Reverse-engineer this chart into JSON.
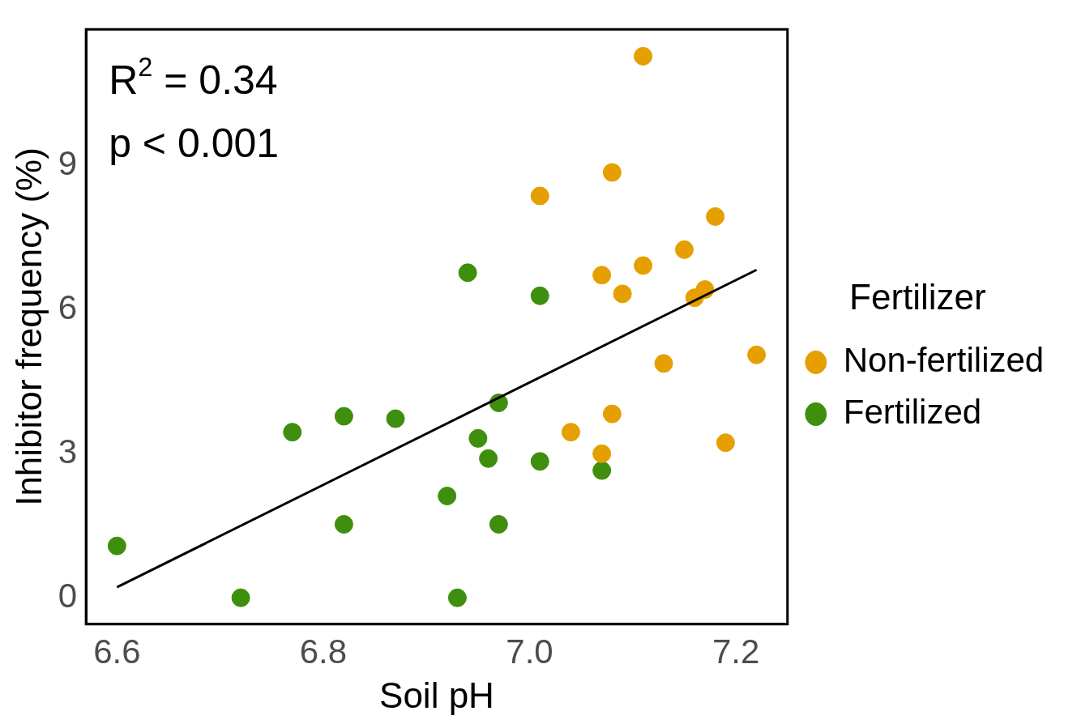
{
  "chart_data": {
    "type": "scatter",
    "xlabel": "Soil pH",
    "ylabel": "Inhibitor frequency (%)",
    "legend_title": "Fertilizer",
    "legend": "right",
    "grid": false,
    "xlim": [
      6.57,
      7.25
    ],
    "ylim": [
      -0.55,
      11.84
    ],
    "xticks": [
      6.6,
      6.8,
      {
        "value": 7.0,
        "label": "7.0"
      },
      7.2
    ],
    "yticks": [
      0,
      3,
      6,
      9
    ],
    "annotations": [
      "R$^{2}$ = 0.34",
      "p < 0.001"
    ],
    "series": [
      {
        "name": "Non-fertilized",
        "color": "#e69f00",
        "marker": "circle",
        "x": [
          7.11,
          7.08,
          7.01,
          7.18,
          7.15,
          7.07,
          7.11,
          7.09,
          7.17,
          7.16,
          7.22,
          7.13,
          7.08,
          7.04,
          7.19,
          7.07
        ],
        "values": [
          11.28,
          8.86,
          8.37,
          7.94,
          7.25,
          6.72,
          6.92,
          6.33,
          6.42,
          6.25,
          5.06,
          4.88,
          3.83,
          3.45,
          3.23,
          3.0
        ]
      },
      {
        "name": "Fertilized",
        "color": "#3f8f0e",
        "marker": "circle",
        "x": [
          6.6,
          6.72,
          6.77,
          6.82,
          6.82,
          6.87,
          6.94,
          7.01,
          6.97,
          6.95,
          6.96,
          7.01,
          7.07,
          6.92,
          6.97,
          6.93
        ],
        "values": [
          1.08,
          0,
          3.45,
          3.78,
          1.53,
          3.73,
          6.77,
          6.29,
          4.06,
          3.32,
          2.9,
          2.84,
          2.65,
          2.12,
          1.53,
          0
        ]
      },
      {
        "type": "line",
        "color": "#000000",
        "x": [
          6.6,
          7.22
        ],
        "values": [
          0.22,
          6.83
        ]
      }
    ]
  }
}
